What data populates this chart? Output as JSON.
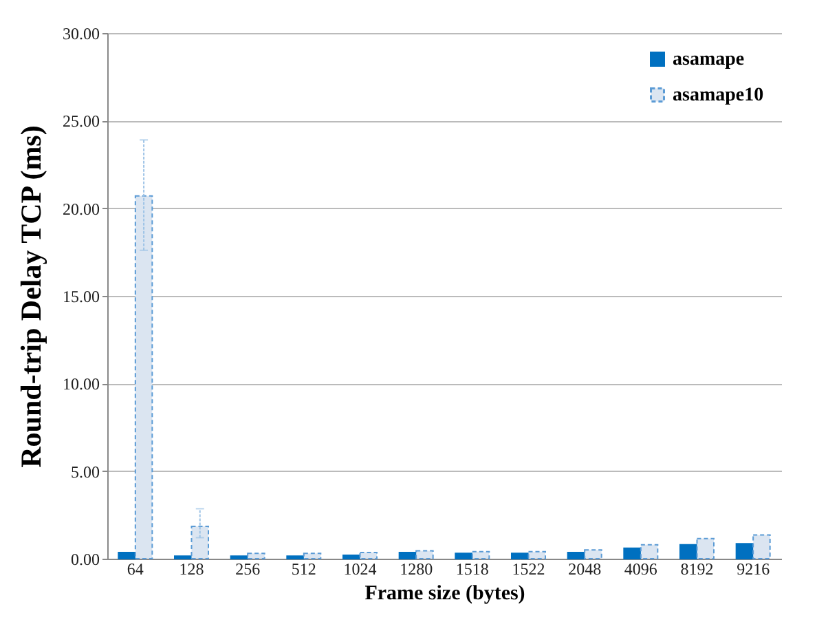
{
  "chart_data": {
    "type": "bar",
    "xlabel": "Frame size (bytes)",
    "ylabel": "Round-trip Delay TCP (ms)",
    "categories": [
      "64",
      "128",
      "256",
      "512",
      "1024",
      "1280",
      "1518",
      "1522",
      "2048",
      "4096",
      "8192",
      "9216"
    ],
    "series": [
      {
        "name": "asamape",
        "color": "#0070c0",
        "values": [
          0.35,
          0.15,
          0.15,
          0.15,
          0.2,
          0.35,
          0.3,
          0.3,
          0.35,
          0.6,
          0.8,
          0.85
        ]
      },
      {
        "name": "asamape10",
        "color": "#dbe5f1",
        "values": [
          20.7,
          1.85,
          0.3,
          0.3,
          0.35,
          0.45,
          0.4,
          0.4,
          0.5,
          0.8,
          1.15,
          1.35
        ],
        "errors": [
          [
            17.6,
            23.9
          ],
          [
            1.2,
            2.85
          ],
          null,
          null,
          null,
          null,
          null,
          null,
          null,
          null,
          null,
          null
        ]
      }
    ],
    "ylim": [
      0,
      30
    ],
    "yticks": [
      {
        "value": 0,
        "label": "0.00"
      },
      {
        "value": 5,
        "label": "5.00"
      },
      {
        "value": 10,
        "label": "10.00"
      },
      {
        "value": 15,
        "label": "15.00"
      },
      {
        "value": 20,
        "label": "20.00"
      },
      {
        "value": 25,
        "label": "25.00"
      },
      {
        "value": 30,
        "label": "30.00"
      }
    ],
    "grid": "y",
    "legend": "top right"
  }
}
